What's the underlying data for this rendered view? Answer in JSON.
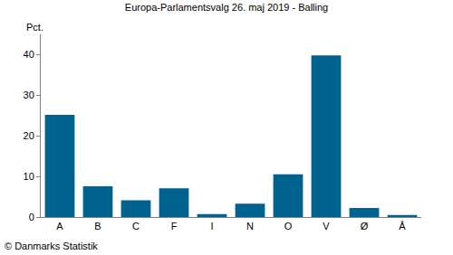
{
  "chart_data": {
    "type": "bar",
    "title": "Europa-Parlamentsvalg 26. maj 2019 - Balling",
    "y_label": "Pct.",
    "categories": [
      "A",
      "B",
      "C",
      "F",
      "I",
      "N",
      "O",
      "V",
      "Ø",
      "Å"
    ],
    "values": [
      25.2,
      7.6,
      4.1,
      7.1,
      0.7,
      3.3,
      10.5,
      39.8,
      2.2,
      0.5
    ],
    "color": "#00628f",
    "ylim": [
      0,
      45
    ],
    "yticks": [
      0,
      10,
      20,
      30,
      40
    ],
    "grid": false,
    "annotations": [
      "© Danmarks Statistik"
    ]
  }
}
